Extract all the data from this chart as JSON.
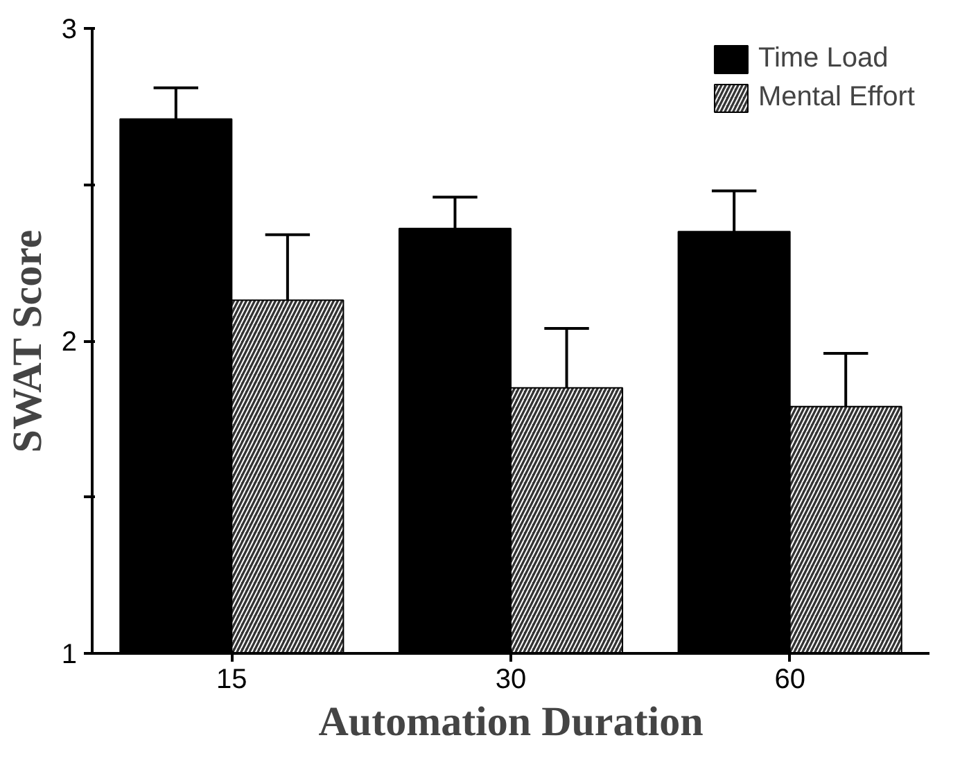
{
  "chart_data": {
    "type": "bar",
    "xlabel": "Automation Duration",
    "ylabel": "SWAT Score",
    "categories": [
      "15",
      "30",
      "60"
    ],
    "series": [
      {
        "name": "Time Load",
        "color": "#000000",
        "values": [
          2.71,
          2.36,
          2.35
        ],
        "errors": [
          [
            2.71,
            2.81
          ],
          [
            2.36,
            2.46
          ],
          [
            2.35,
            2.48
          ]
        ]
      },
      {
        "name": "Mental Effort",
        "color": "#333333",
        "values": [
          2.13,
          1.85,
          1.79
        ],
        "errors": [
          [
            2.13,
            2.34
          ],
          [
            1.85,
            2.04
          ],
          [
            1.79,
            1.96
          ]
        ]
      }
    ],
    "ylim": [
      1,
      3
    ],
    "yticks": [
      1,
      {
        "value": 1.5,
        "label": null
      },
      2,
      {
        "value": 2.5,
        "label": null
      },
      3
    ],
    "grid": false,
    "legend": "top right"
  }
}
